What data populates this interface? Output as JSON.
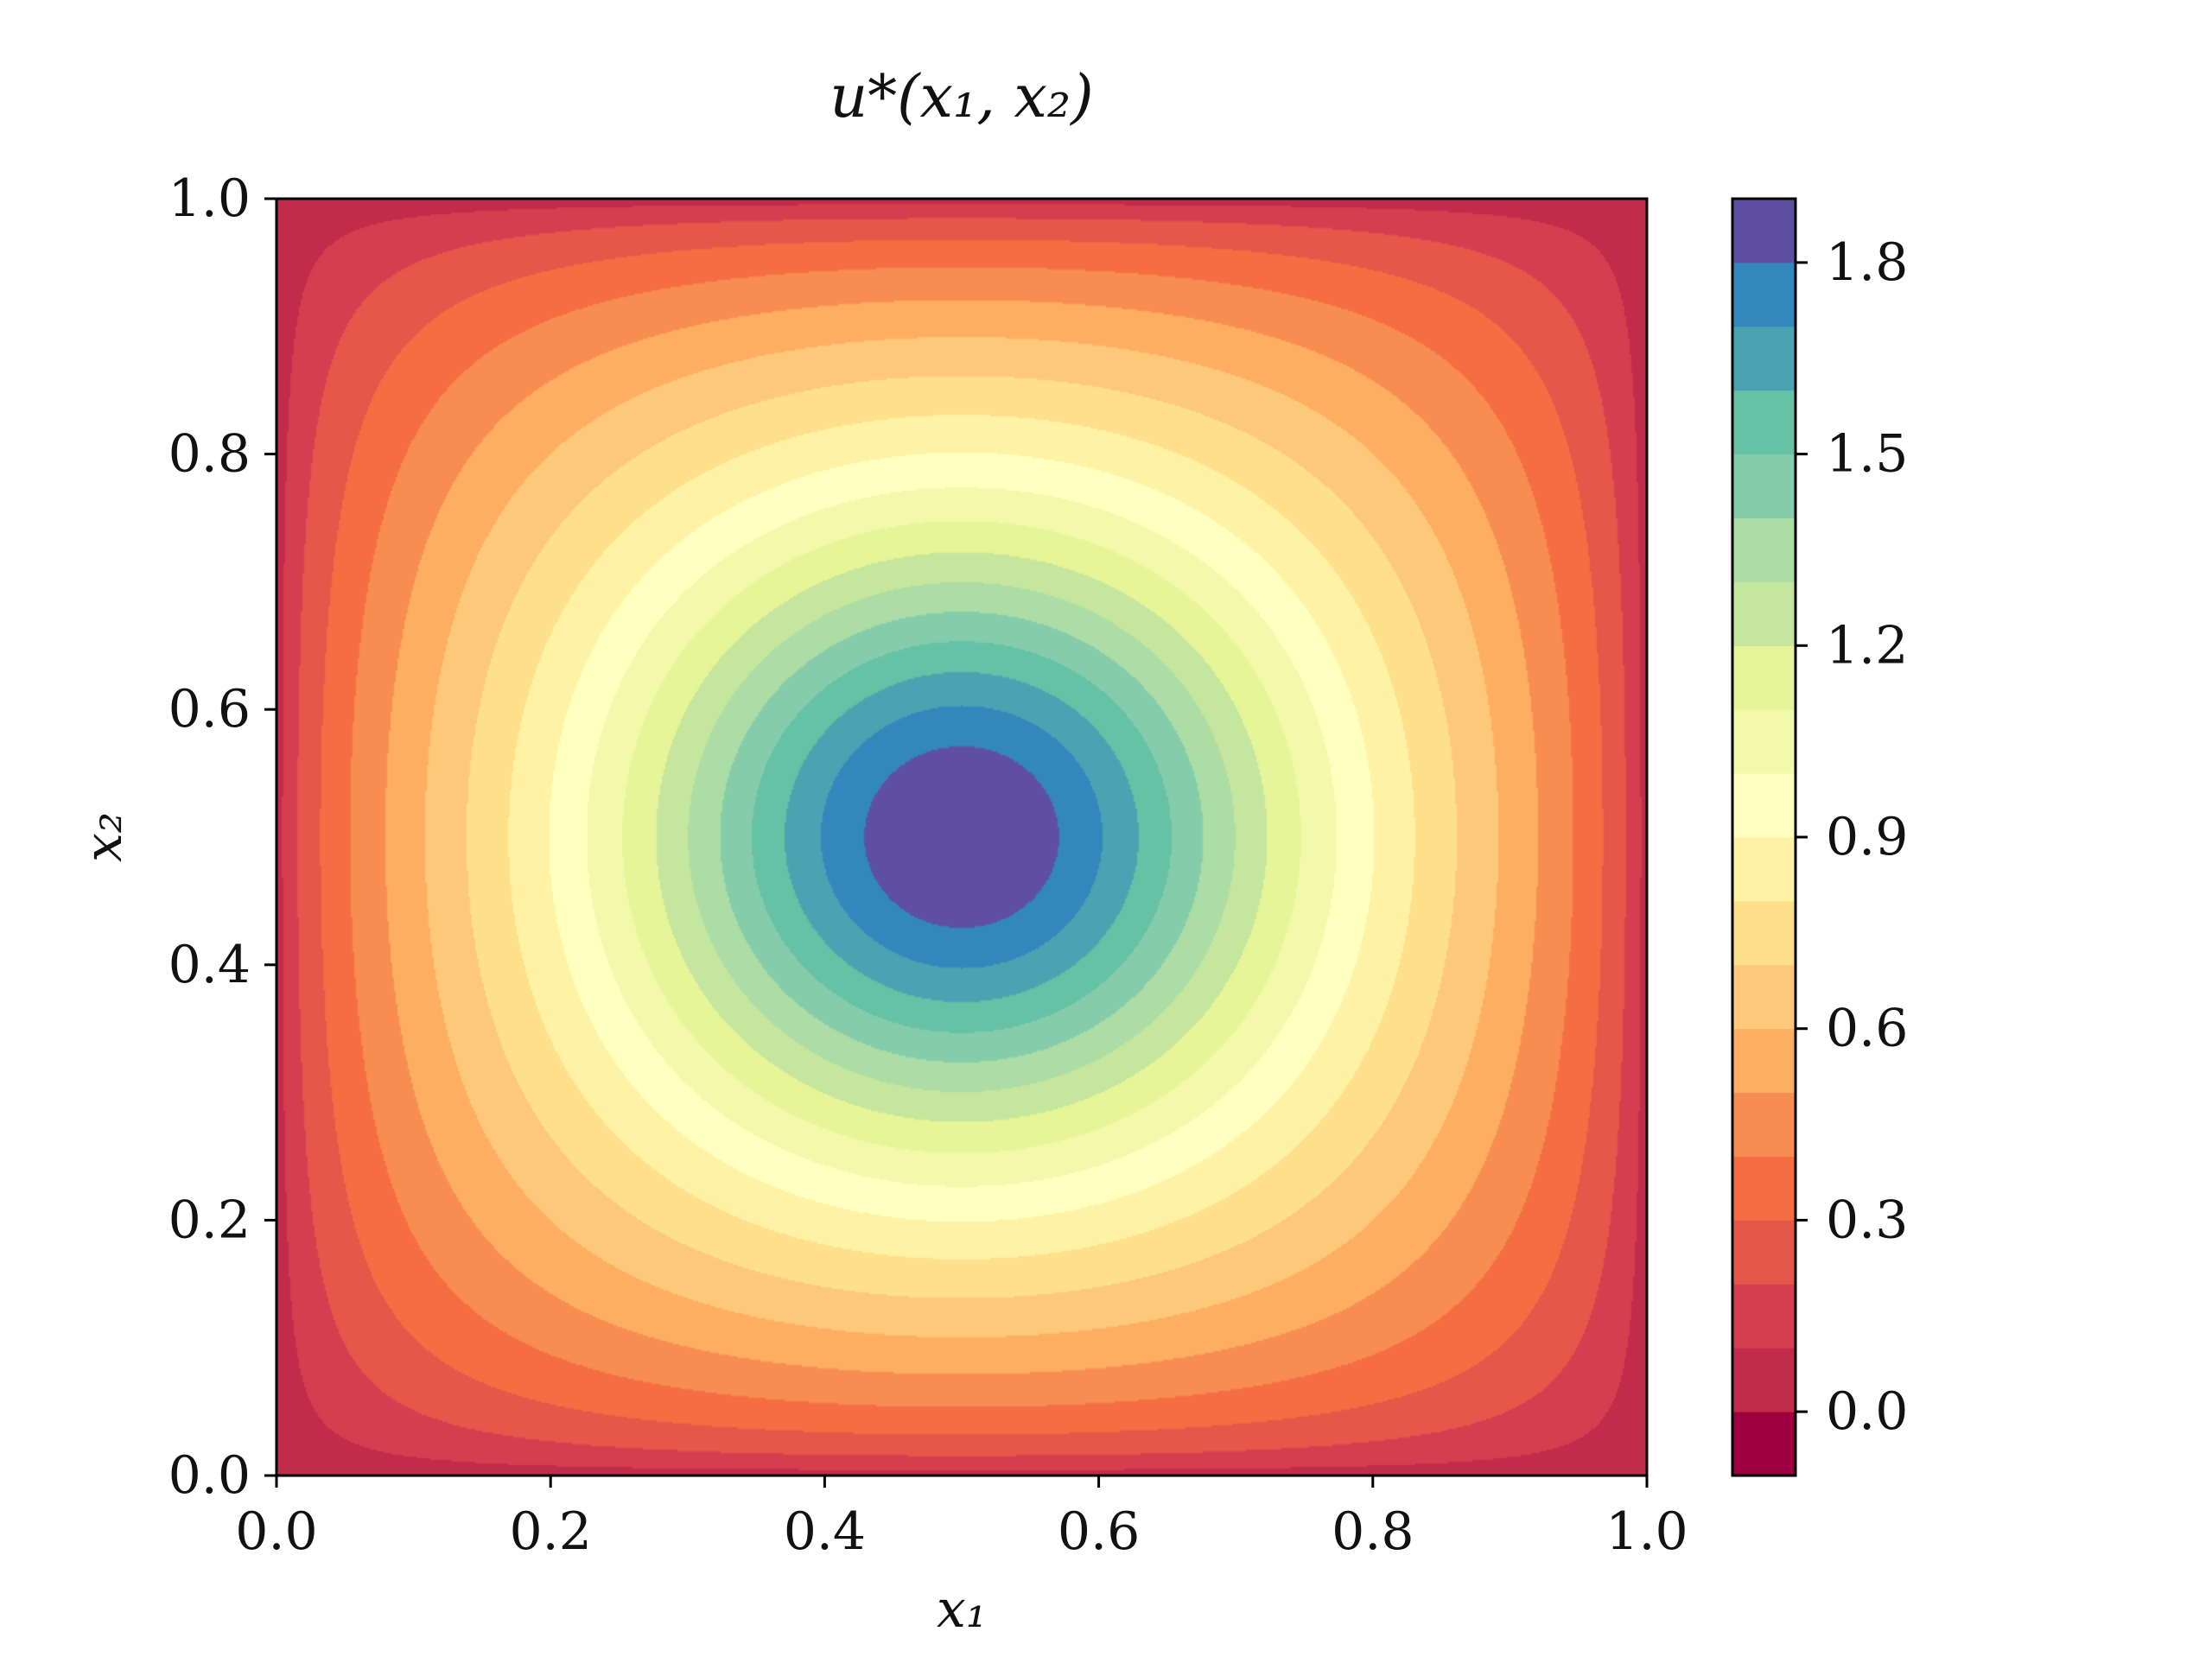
{
  "chart_data": {
    "type": "heatmap",
    "subtype": "filled-contour",
    "title": "u*(x₁, x₂)",
    "xlabel": "x₁",
    "ylabel": "x₂",
    "xlim": [
      0.0,
      1.0
    ],
    "ylim": [
      0.0,
      1.0
    ],
    "x_ticks": [
      "0.0",
      "0.2",
      "0.4",
      "0.6",
      "0.8",
      "1.0"
    ],
    "y_ticks": [
      "0.0",
      "0.2",
      "0.4",
      "0.6",
      "0.8",
      "1.0"
    ],
    "grid": false,
    "colormap": "Spectral",
    "value_range": [
      -0.1,
      1.9
    ],
    "levels": 20,
    "field_peak": {
      "x": 0.5,
      "y": 0.5,
      "value": 1.9
    },
    "boundary_value": 0.0,
    "colorbar": {
      "position": "right",
      "ticks": [
        "0.0",
        "0.3",
        "0.6",
        "0.9",
        "1.2",
        "1.5",
        "1.8"
      ],
      "tick_values": [
        0.0,
        0.3,
        0.6,
        0.9,
        1.2,
        1.5,
        1.8
      ],
      "band_colors": [
        "#9e0142",
        "#c02c4a",
        "#d53e4f",
        "#e55749",
        "#f46d43",
        "#f88d52",
        "#fdae61",
        "#fec87a",
        "#fee08b",
        "#fff2a5",
        "#ffffbf",
        "#f2f9aa",
        "#e6f598",
        "#c4e69e",
        "#abdda4",
        "#85ccab",
        "#66c2a5",
        "#4ba3b2",
        "#3288bd",
        "#5e4fa2"
      ]
    }
  }
}
